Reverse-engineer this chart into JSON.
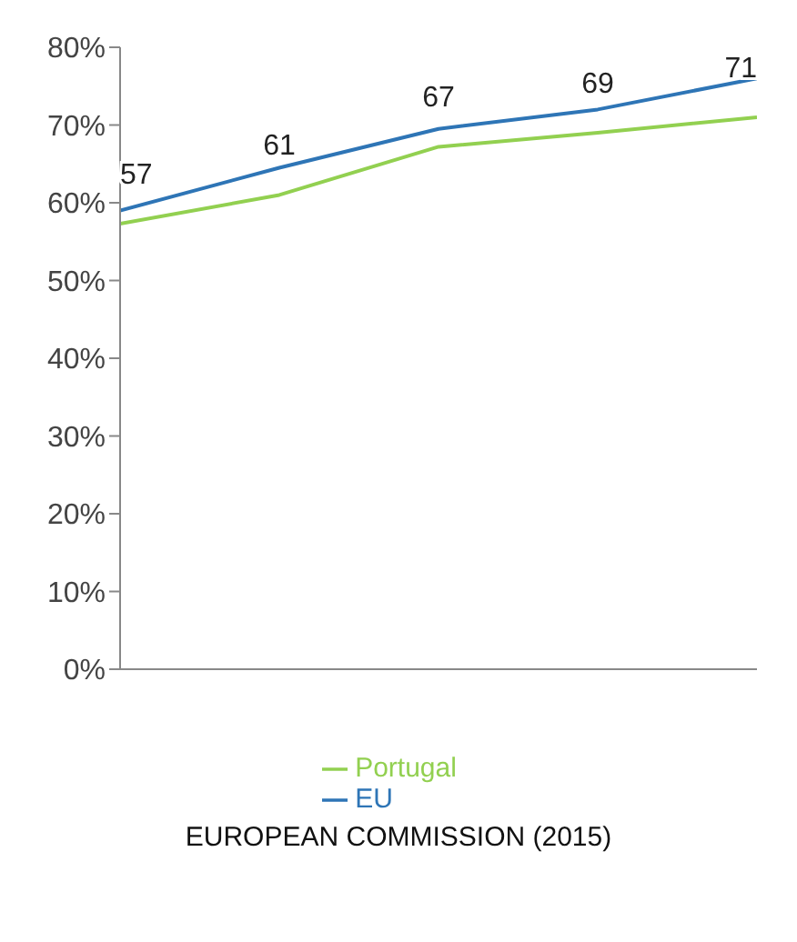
{
  "chart_data": {
    "type": "line",
    "categories": [
      null,
      null,
      null,
      null,
      null
    ],
    "series": [
      {
        "name": "Portugal",
        "color": "#92d050",
        "values": [
          57.3,
          61,
          67.2,
          69,
          71
        ],
        "value_labels": [
          "57",
          "61",
          "67",
          "69",
          "71"
        ]
      },
      {
        "name": "EU",
        "color": "#2e75b6",
        "values": [
          59,
          64.5,
          69.5,
          72,
          76
        ]
      }
    ],
    "ylim": [
      0,
      80
    ],
    "yticks": [
      {
        "value": 0,
        "label": "0%"
      },
      {
        "value": 10,
        "label": "10%"
      },
      {
        "value": 20,
        "label": "20%"
      },
      {
        "value": 30,
        "label": "30%"
      },
      {
        "value": 40,
        "label": "40%"
      },
      {
        "value": 50,
        "label": "50%"
      },
      {
        "value": 60,
        "label": "60%"
      },
      {
        "value": 70,
        "label": "70%"
      },
      {
        "value": 80,
        "label": "80%"
      }
    ],
    "tick_labels": "y",
    "grid": false,
    "legend": "bottom",
    "marker": "none",
    "line_style": "solid",
    "annotations": [
      "EUROPEAN COMMISSION (2015)"
    ]
  }
}
